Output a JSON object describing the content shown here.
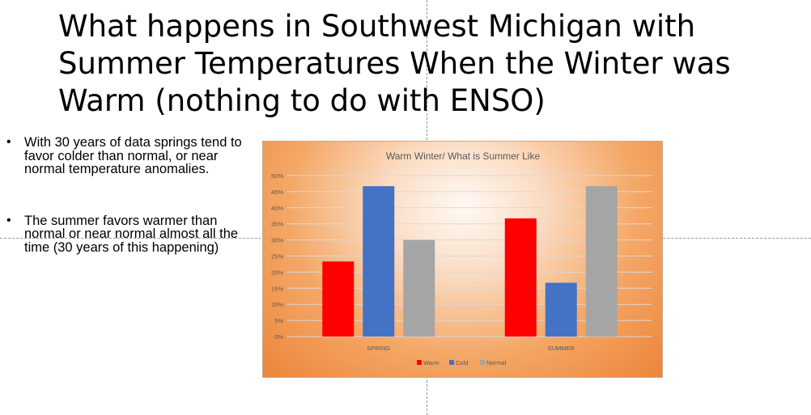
{
  "slide": {
    "title": "What happens in Southwest Michigan with Summer Temperatures When the Winter was Warm (nothing to do with ENSO)",
    "bullets": [
      "With 30 years of data springs tend to favor colder than normal, or  near normal temperature anomalies.",
      "The summer favors warmer than normal or near normal almost all the time (30 years of this happening)"
    ]
  },
  "chart_data": {
    "type": "bar",
    "title": "Warm Winter/ What is Summer Like",
    "categories": [
      "SPRING",
      "SUMMER"
    ],
    "series": [
      {
        "name": "Warm",
        "color": "#ff0000",
        "values": [
          0.233,
          0.367
        ]
      },
      {
        "name": "Cold",
        "color": "#4472c4",
        "values": [
          0.467,
          0.167
        ]
      },
      {
        "name": "Normal",
        "color": "#a5a5a5",
        "values": [
          0.3,
          0.467
        ]
      }
    ],
    "ylim": [
      0,
      0.5
    ],
    "yticks": [
      "0%",
      "5%",
      "10%",
      "15%",
      "20%",
      "25%",
      "30%",
      "35%",
      "40%",
      "45%",
      "50%"
    ],
    "grid": true,
    "legend": "bottom"
  }
}
